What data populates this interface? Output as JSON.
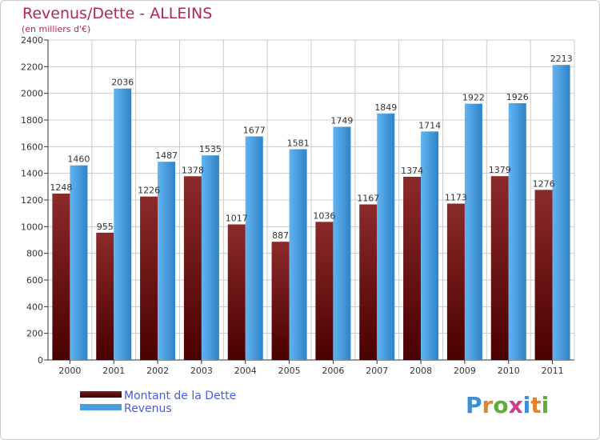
{
  "chart_data": {
    "type": "bar",
    "title": "Revenus/Dette - ALLEINS",
    "subtitle": "(en milliers d'€)",
    "categories": [
      "2000",
      "2001",
      "2002",
      "2003",
      "2004",
      "2005",
      "2006",
      "2007",
      "2008",
      "2009",
      "2010",
      "2011"
    ],
    "series": [
      {
        "name": "Montant de la Dette",
        "color": "#7b1a1a",
        "values": [
          1248,
          955,
          1226,
          1378,
          1017,
          887,
          1036,
          1167,
          1374,
          1173,
          1379,
          1276
        ],
        "labels": [
          "1248",
          "955",
          "1226",
          "1378",
          "1017",
          "887",
          "1036",
          "1167",
          "1374",
          "1173",
          "1379",
          "1276"
        ]
      },
      {
        "name": "Revenus",
        "color": "#4a9fe0",
        "values": [
          1460,
          2036,
          1487,
          1535,
          1677,
          1581,
          1749,
          1849,
          1714,
          1922,
          1926,
          2213
        ],
        "labels": [
          "1460",
          "2036",
          "1487",
          "1535",
          "1677",
          "1581",
          "1749",
          "1849",
          "1714",
          "1922",
          "1926",
          "2213"
        ]
      }
    ],
    "ylim": [
      0,
      2400
    ],
    "yticks": [
      "0",
      "200",
      "400",
      "600",
      "800",
      "1000",
      "1200",
      "1400",
      "1600",
      "1800",
      "2000",
      "2200",
      "2400"
    ],
    "grid": true,
    "legend": "bottom-left"
  },
  "brand": {
    "logo_text": "Proxiti"
  }
}
